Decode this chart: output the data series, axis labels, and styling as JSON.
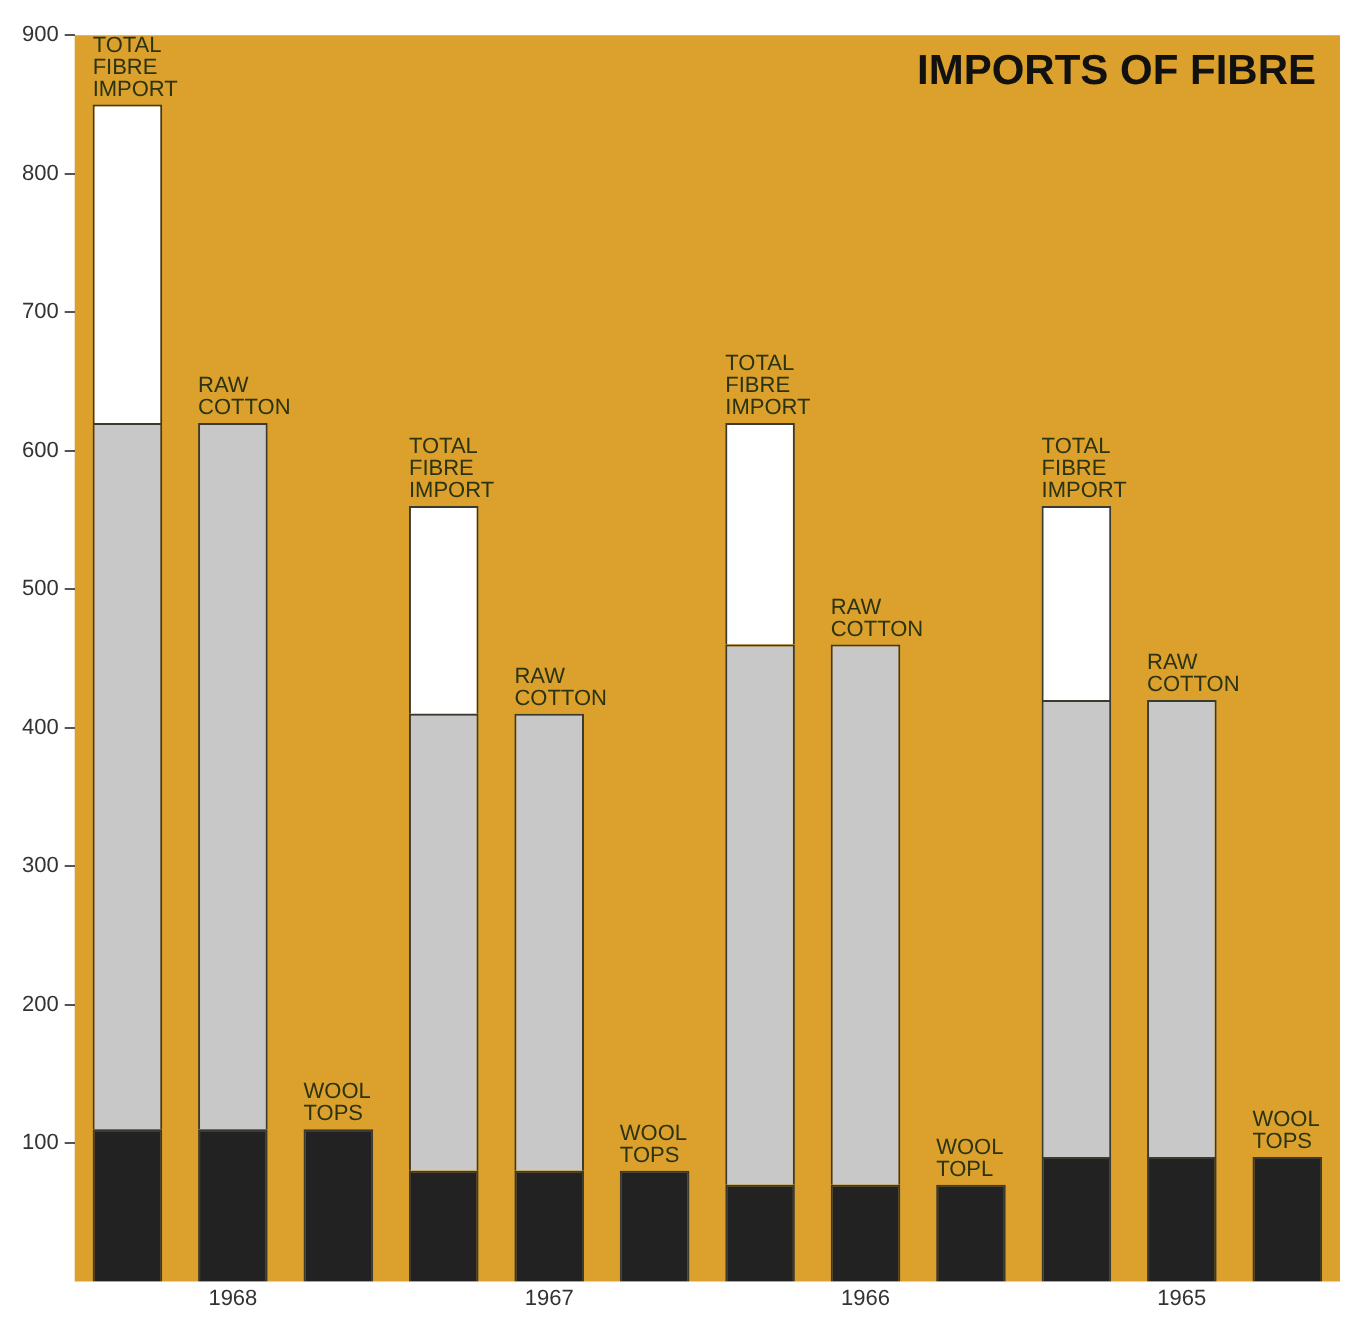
{
  "chart_data": {
    "type": "bar",
    "title": "IMPORTS OF FIBRE",
    "stacked": true,
    "categories": [
      null,
      "1968",
      null,
      null,
      "1967",
      null,
      null,
      "1966",
      null,
      null,
      "1965",
      null
    ],
    "series": [
      {
        "color": "#222222",
        "values": [
          110,
          110,
          110,
          80,
          80,
          80,
          70,
          70,
          70,
          90,
          90,
          90
        ],
        "value_labels": [
          null,
          null,
          "WOOL TOPS",
          null,
          null,
          "WOOL TOPS",
          null,
          null,
          "WOOL TOPL",
          null,
          null,
          "WOOL TOPS"
        ]
      },
      {
        "color": "#c8c8c8",
        "values": [
          510,
          510,
          null,
          330,
          330,
          null,
          390,
          390,
          null,
          330,
          330,
          null
        ],
        "value_labels": [
          null,
          "RAW COTTON",
          null,
          null,
          "RAW COTTON",
          null,
          null,
          "RAW COTTON",
          null,
          null,
          "RAW COTTON",
          null
        ]
      },
      {
        "color": "#ffffff",
        "values": [
          230,
          null,
          null,
          150,
          null,
          null,
          160,
          null,
          null,
          140,
          null,
          null
        ],
        "value_labels": [
          "TOTAL FIBRE IMPORT",
          null,
          null,
          "TOTAL FIBRE IMPORT",
          null,
          null,
          "TOTAL FIBRE IMPORT",
          null,
          null,
          "TOTAL FIBRE IMPORT",
          null,
          null
        ]
      }
    ],
    "ylim": [
      0,
      900
    ],
    "yticks": [
      100,
      200,
      300,
      400,
      500,
      600,
      700,
      800,
      900
    ],
    "grid": false,
    "legend": false
  }
}
